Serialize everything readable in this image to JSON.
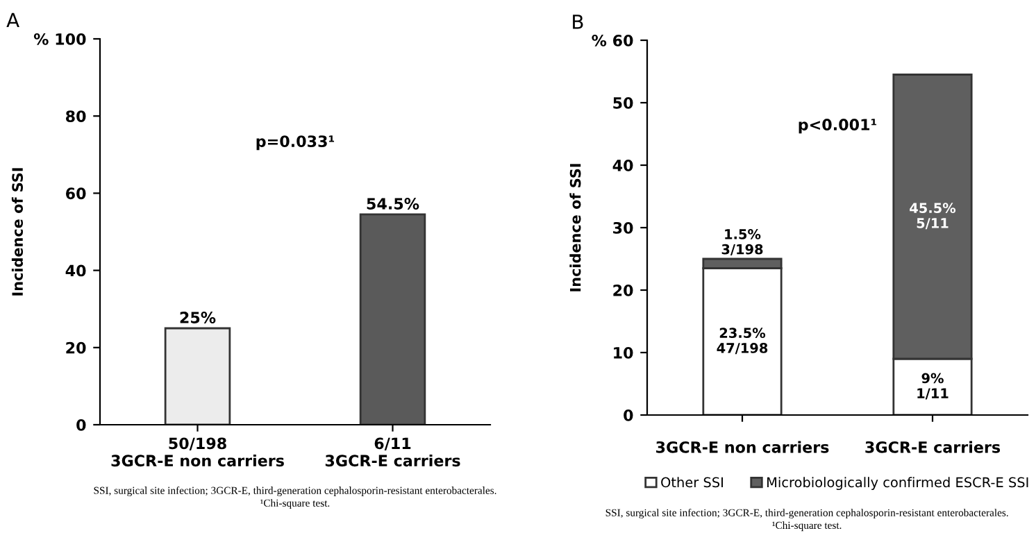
{
  "chart_data": [
    {
      "type": "bar",
      "title": "A",
      "ylabel": "Incidence of SSI",
      "categories": [
        "50/198\n3GCR-E non carriers",
        "6/11\n3GCR-E carriers"
      ],
      "values": [
        25,
        54.5
      ],
      "colors": [
        "#ececec",
        "#5a5a5a"
      ],
      "value_labels": [
        "25%",
        "54.5%"
      ],
      "ylim": [
        0,
        100
      ],
      "yticks": [
        0,
        20,
        40,
        60,
        80,
        {
          "value": 100,
          "label": "% 100"
        }
      ],
      "annotations": [
        {
          "text": "p=0.033¹"
        },
        {
          "text": "SSI, surgical site infection; 3GCR-E, third-generation cephalosporin-resistant enterobacterales.\n¹Chi-square test."
        }
      ],
      "grid": false,
      "legend": false
    },
    {
      "type": "bar",
      "title": "B",
      "ylabel": "Incidence of SSI",
      "stacked": true,
      "categories": [
        "3GCR-E non carriers",
        "3GCR-E carriers"
      ],
      "series": [
        {
          "name": "Other SSI",
          "color": "#ffffff",
          "values": [
            23.5,
            9
          ],
          "value_labels": [
            "23.5%\n47/198",
            "9%\n1/11"
          ]
        },
        {
          "name": "Microbiologically confirmed ESCR-E SSI",
          "color": "#5f5f5f",
          "values": [
            1.5,
            45.5
          ],
          "value_labels": [
            "1.5%\n3/198",
            "45.5%\n5/11"
          ]
        }
      ],
      "ylim": [
        0,
        60
      ],
      "yticks": [
        0,
        10,
        20,
        30,
        40,
        50,
        {
          "value": 60,
          "label": "% 60"
        }
      ],
      "annotations": [
        {
          "text": "p<0.001¹"
        },
        {
          "text": "SSI, surgical site infection; 3GCR-E, third-generation cephalosporin-resistant enterobacterales.\n¹Chi-square test."
        }
      ],
      "grid": false,
      "legend": "bottom"
    }
  ]
}
